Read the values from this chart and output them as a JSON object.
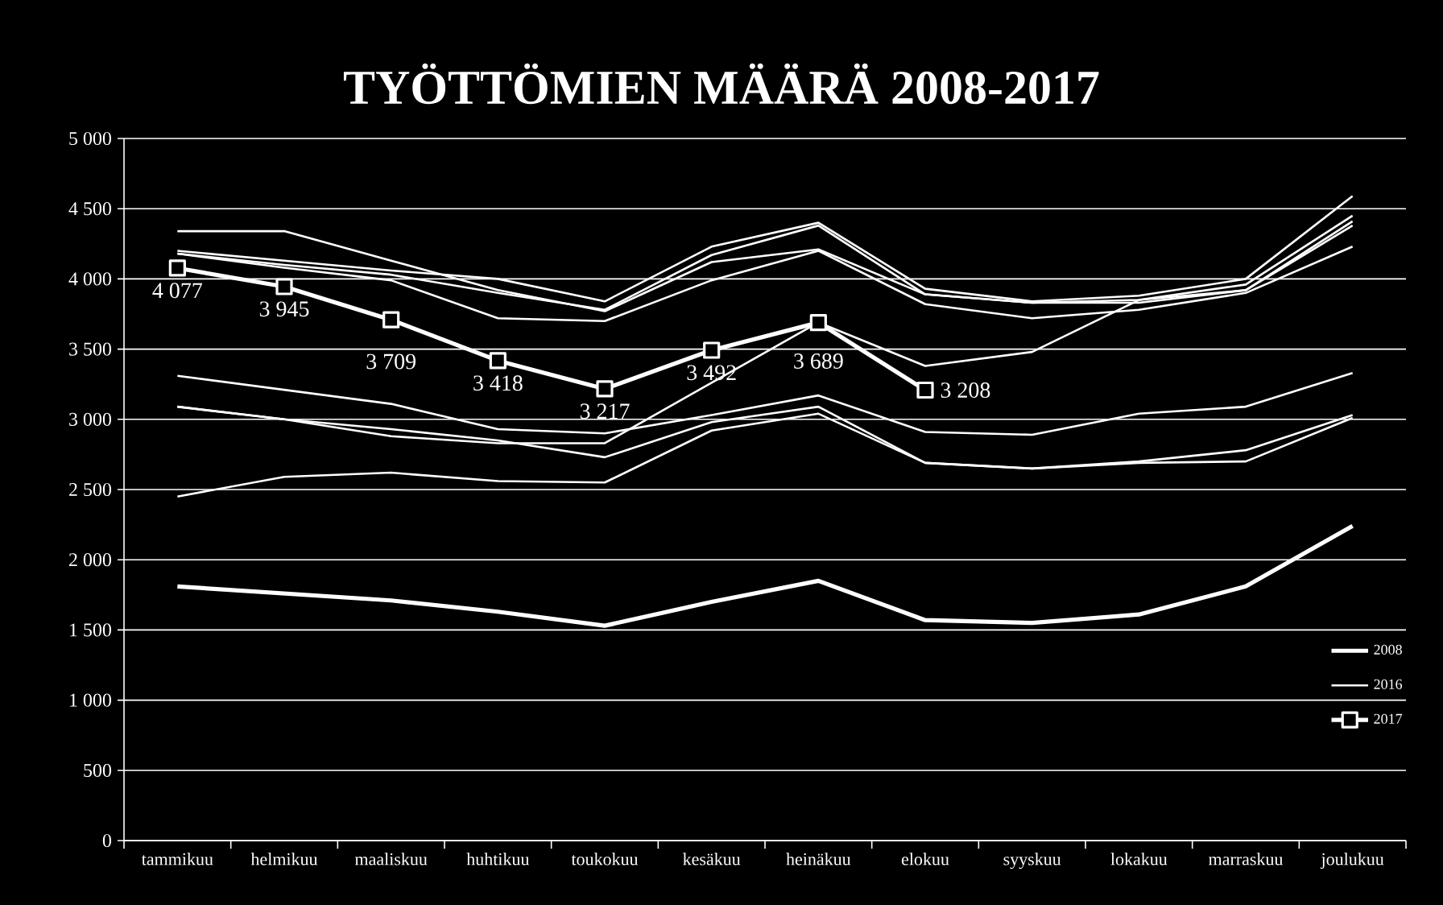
{
  "chart_data": {
    "type": "line",
    "title": "TYÖTTÖMIEN MÄÄRÄ 2008-2017",
    "categories": [
      "tammikuu",
      "helmikuu",
      "maaliskuu",
      "huhtikuu",
      "toukokuu",
      "kesäkuu",
      "heinäkuu",
      "elokuu",
      "syyskuu",
      "lokakuu",
      "marraskuu",
      "joulukuu"
    ],
    "series": [
      {
        "name": "2008",
        "color": "#ffffff",
        "values": [
          1810,
          1760,
          1710,
          1630,
          1530,
          1700,
          1850,
          1570,
          1550,
          1610,
          1810,
          2240
        ]
      },
      {
        "color": "#ffffff",
        "values": [
          4340,
          4340,
          4130,
          3920,
          3770,
          4120,
          4210,
          3890,
          3830,
          3850,
          3960,
          4450
        ]
      },
      {
        "color": "#ffffff",
        "values": [
          4200,
          4130,
          4060,
          4000,
          3840,
          4230,
          4400,
          3930,
          3840,
          3880,
          4000,
          4590
        ]
      },
      {
        "color": "#ffffff",
        "values": [
          4180,
          4100,
          4030,
          3900,
          3780,
          4170,
          4380,
          3890,
          3830,
          3830,
          3920,
          4410
        ]
      },
      {
        "color": "#ffffff",
        "values": [
          3090,
          3000,
          2880,
          2830,
          2830,
          3260,
          3690,
          3380,
          3480,
          3850,
          3920,
          4380
        ]
      },
      {
        "color": "#ffffff",
        "values": [
          3310,
          3210,
          3110,
          2930,
          2900,
          3030,
          3170,
          2910,
          2890,
          3040,
          3090,
          3330
        ]
      },
      {
        "color": "#ffffff",
        "values": [
          3090,
          3000,
          2930,
          2850,
          2730,
          2980,
          3090,
          2690,
          2650,
          2700,
          2780,
          3030
        ]
      },
      {
        "color": "#ffffff",
        "values": [
          2450,
          2590,
          2620,
          2560,
          2550,
          2920,
          3040,
          2690,
          2650,
          2690,
          2700,
          3010
        ]
      },
      {
        "name": "2016",
        "color": "#ffffff",
        "values": [
          4180,
          4080,
          3990,
          3720,
          3700,
          3990,
          4200,
          3820,
          3720,
          3780,
          3900,
          4230
        ]
      },
      {
        "name": "2017",
        "color": "#ffffff",
        "marker": "square",
        "values": [
          4077,
          3945,
          3709,
          3418,
          3217,
          3492,
          3689,
          3208,
          null,
          null,
          null,
          null
        ],
        "value_labels": [
          "4 077",
          "3 945",
          "3 709",
          "3 418",
          "3 217",
          "3 492",
          "3 689",
          "3 208",
          null,
          null,
          null,
          null
        ]
      }
    ],
    "ylim": [
      0,
      5000
    ],
    "yticks": [
      {
        "value": 0,
        "label": "0"
      },
      {
        "value": 500,
        "label": "500"
      },
      {
        "value": 1000,
        "label": "1 000"
      },
      {
        "value": 1500,
        "label": "1 500"
      },
      {
        "value": 2000,
        "label": "2 000"
      },
      {
        "value": 2500,
        "label": "2 500"
      },
      {
        "value": 3000,
        "label": "3 000"
      },
      {
        "value": 3500,
        "label": "3 500"
      },
      {
        "value": 4000,
        "label": "4 000"
      },
      {
        "value": 4500,
        "label": "4 500"
      },
      {
        "value": 5000,
        "label": "5 000"
      }
    ],
    "grid": "y",
    "legend": "bottom right",
    "marker": "none",
    "line_style": "solid"
  }
}
